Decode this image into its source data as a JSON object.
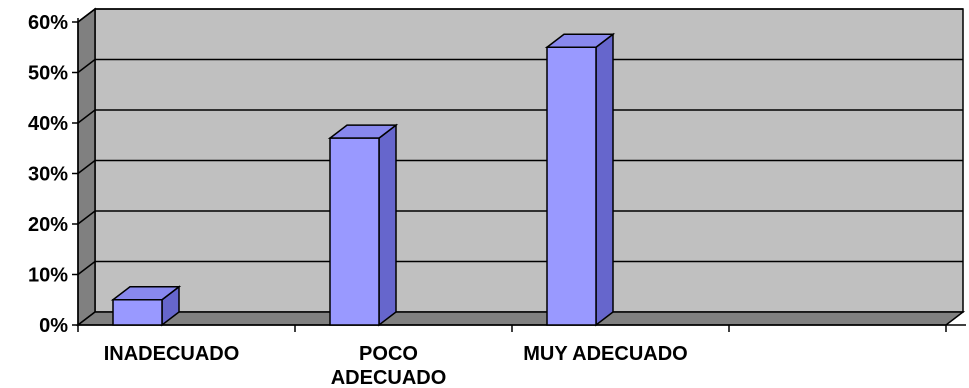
{
  "chart_data": {
    "type": "bar",
    "categories": [
      [
        "INADECUADO"
      ],
      [
        "POCO",
        "ADECUADO"
      ],
      [
        "MUY ADECUADO"
      ]
    ],
    "values": [
      5,
      37,
      55
    ],
    "ylim": [
      0,
      60
    ],
    "yticks": [
      "0%",
      "10%",
      "20%",
      "30%",
      "40%",
      "50%",
      "60%"
    ],
    "grid": true,
    "style": "3d-column",
    "colors": {
      "bar_front": "#9999ff",
      "bar_side": "#6666cc",
      "bar_top": "#8888ee",
      "wall": "#c0c0c0",
      "side_wall": "#808080",
      "floor": "#808080",
      "grid": "#000000"
    }
  }
}
